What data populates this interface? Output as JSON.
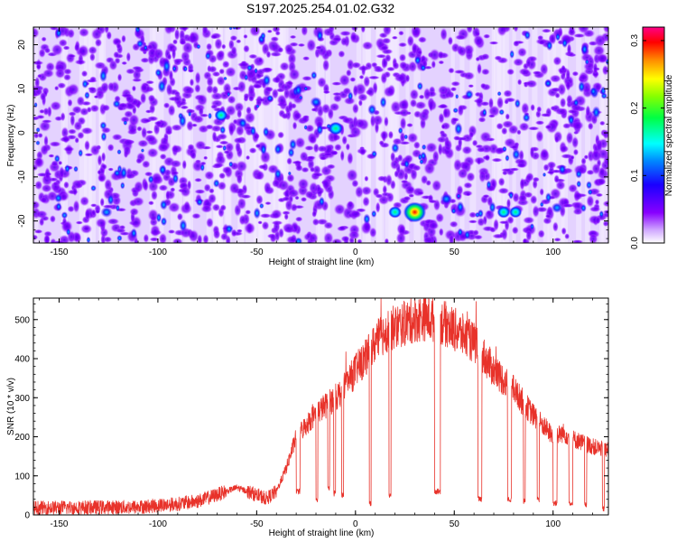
{
  "chart_data": [
    {
      "type": "heatmap",
      "title": "S197.2025.254.01.02.G32",
      "xlabel": "Height of straight line (km)",
      "ylabel": "Frequency (Hz)",
      "xlim": [
        -163,
        128
      ],
      "ylim": [
        -25,
        24
      ],
      "xticks": [
        -150,
        -100,
        -50,
        0,
        50,
        100
      ],
      "yticks": [
        -20,
        -10,
        0,
        10,
        20
      ],
      "colorbar": {
        "label": "Normalized spectral amplitude",
        "range": [
          0,
          0.32
        ],
        "ticks": [
          "0.0",
          "0.1",
          "0.2",
          "0.3"
        ],
        "tick_values": [
          0,
          0.1,
          0.2,
          0.3
        ],
        "colors": [
          "#ffffff",
          "#8800ff",
          "#0000ff",
          "#00ffff",
          "#00ff00",
          "#ffff00",
          "#ff0000",
          "#ff00aa"
        ]
      },
      "hotspots": [
        {
          "x": 30,
          "y": -18,
          "amplitude": 0.31
        },
        {
          "x": 20,
          "y": -18,
          "amplitude": 0.12
        },
        {
          "x": 75,
          "y": -18,
          "amplitude": 0.12
        },
        {
          "x": 81,
          "y": -18,
          "amplitude": 0.11
        },
        {
          "x": -10,
          "y": 1,
          "amplitude": 0.15
        },
        {
          "x": 46,
          "y": -15,
          "amplitude": 0.1
        },
        {
          "x": -68,
          "y": 4,
          "amplitude": 0.12
        },
        {
          "x": -20,
          "y": 7,
          "amplitude": 0.09
        },
        {
          "x": -126,
          "y": -18,
          "amplitude": 0.09
        },
        {
          "x": 102,
          "y": -17,
          "amplitude": 0.09
        }
      ]
    },
    {
      "type": "line",
      "xlabel": "Height of straight line (km)",
      "ylabel": "SNR (10 * v/v)",
      "xlim": [
        -163,
        128
      ],
      "ylim": [
        0,
        555
      ],
      "xticks": [
        -150,
        -100,
        -50,
        0,
        50,
        100
      ],
      "yticks": [
        0,
        100,
        200,
        300,
        400,
        500
      ],
      "series": [
        {
          "name": "SNR",
          "color": "#e8322a",
          "envelope_x": [
            -163,
            -110,
            -90,
            -80,
            -72,
            -60,
            -52,
            -45,
            -40,
            -35,
            -30,
            -25,
            -20,
            -15,
            -10,
            -5,
            0,
            5,
            10,
            15,
            20,
            25,
            30,
            35,
            40,
            45,
            50,
            60,
            70,
            80,
            90,
            95,
            100,
            105,
            110,
            115,
            120,
            128
          ],
          "envelope_y": [
            18,
            20,
            28,
            35,
            48,
            70,
            55,
            42,
            60,
            120,
            200,
            230,
            260,
            280,
            300,
            330,
            370,
            400,
            440,
            470,
            480,
            490,
            500,
            505,
            500,
            490,
            475,
            440,
            370,
            320,
            255,
            230,
            200,
            210,
            195,
            185,
            175,
            165
          ],
          "dropouts": [
            {
              "x0": -30,
              "x1": -28,
              "y": 60
            },
            {
              "x0": -20,
              "x1": -19,
              "y": 40
            },
            {
              "x0": -14,
              "x1": -13,
              "y": 70
            },
            {
              "x0": -11,
              "x1": -10,
              "y": 55
            },
            {
              "x0": -7,
              "x1": -6,
              "y": 50
            },
            {
              "x0": 7,
              "x1": 8,
              "y": 30
            },
            {
              "x0": 17,
              "x1": 18,
              "y": 50
            },
            {
              "x0": 40,
              "x1": 43,
              "y": 60
            },
            {
              "x0": 62,
              "x1": 64,
              "y": 40
            },
            {
              "x0": 77,
              "x1": 79,
              "y": 40
            },
            {
              "x0": 85,
              "x1": 86,
              "y": 35
            },
            {
              "x0": 92,
              "x1": 93,
              "y": 40
            },
            {
              "x0": 100,
              "x1": 102,
              "y": 30
            },
            {
              "x0": 108,
              "x1": 110,
              "y": 30
            },
            {
              "x0": 116,
              "x1": 117,
              "y": 25
            },
            {
              "x0": 125,
              "x1": 126,
              "y": 15
            }
          ]
        }
      ]
    }
  ]
}
